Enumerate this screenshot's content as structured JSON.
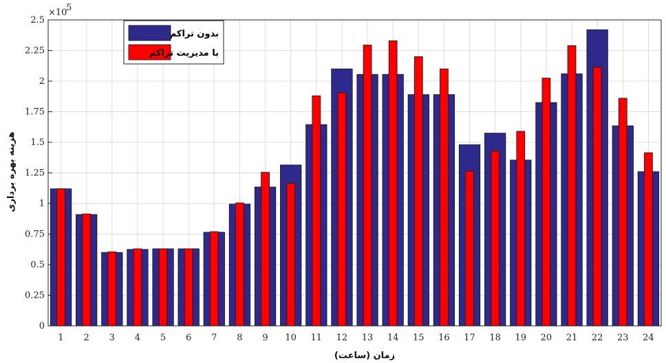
{
  "chart_data": {
    "type": "bar",
    "title": "",
    "xlabel": "زمان (ساعت)",
    "ylabel": "هزینه بهره برداری",
    "y_multiplier_label": "×10",
    "y_multiplier_exponent": "5",
    "ylim": [
      0,
      2.5
    ],
    "yticks": [
      "0",
      "0.25",
      "0.5",
      "0.75",
      "1",
      "1.25",
      "1.5",
      "1.75",
      "2",
      "2.25",
      "2.5"
    ],
    "categories": [
      "1",
      "2",
      "3",
      "4",
      "5",
      "6",
      "7",
      "8",
      "9",
      "10",
      "11",
      "12",
      "13",
      "14",
      "15",
      "16",
      "17",
      "18",
      "19",
      "20",
      "21",
      "22",
      "23",
      "24"
    ],
    "series": [
      {
        "name": "بدون تراکم",
        "color": "#2e2a8c",
        "values": [
          1.12,
          0.91,
          0.6,
          0.625,
          0.63,
          0.63,
          0.765,
          0.995,
          1.135,
          1.315,
          1.645,
          2.1,
          2.055,
          2.055,
          1.89,
          1.89,
          1.48,
          1.575,
          1.355,
          1.825,
          2.06,
          2.42,
          1.635,
          1.26
        ]
      },
      {
        "name": "با مدیریت تراکم",
        "color": "#ff0000",
        "values": [
          1.12,
          0.915,
          0.605,
          0.63,
          0.63,
          0.63,
          0.77,
          1.005,
          1.255,
          1.165,
          1.88,
          1.905,
          2.295,
          2.33,
          2.2,
          2.1,
          1.265,
          1.43,
          1.59,
          2.025,
          2.29,
          2.115,
          1.86,
          1.415
        ]
      }
    ],
    "grid": true,
    "legend_position": "top-left"
  }
}
